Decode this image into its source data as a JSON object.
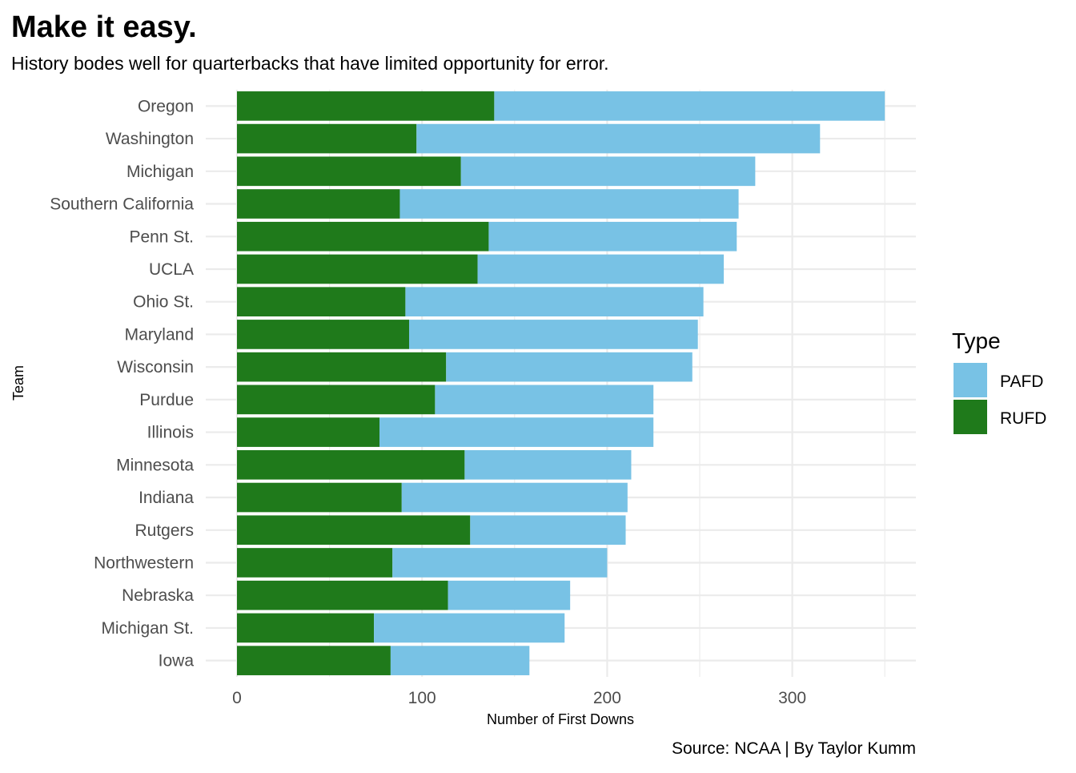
{
  "chart_data": {
    "type": "bar",
    "orientation": "horizontal",
    "stacked": true,
    "title": "Make it easy.",
    "subtitle": "History bodes well for quarterbacks that have limited opportunity for error.",
    "xlabel": "Number of First Downs",
    "ylabel": "Team",
    "caption": "Source: NCAA | By Taylor Kumm",
    "xlim": [
      0,
      367
    ],
    "xticks": [
      0,
      100,
      200,
      300
    ],
    "grid": true,
    "legend": {
      "title": "Type",
      "position": "right"
    },
    "categories": [
      "Oregon",
      "Washington",
      "Michigan",
      "Southern California",
      "Penn St.",
      "UCLA",
      "Ohio St.",
      "Maryland",
      "Wisconsin",
      "Purdue",
      "Illinois",
      "Minnesota",
      "Indiana",
      "Rutgers",
      "Northwestern",
      "Nebraska",
      "Michigan St.",
      "Iowa"
    ],
    "series": [
      {
        "name": "RUFD",
        "color": "#1f7a1b",
        "values": [
          139,
          97,
          121,
          88,
          136,
          130,
          91,
          93,
          113,
          107,
          77,
          123,
          89,
          126,
          84,
          114,
          74,
          83
        ]
      },
      {
        "name": "PAFD",
        "color": "#78c2e5",
        "values": [
          211,
          218,
          159,
          183,
          134,
          133,
          161,
          156,
          133,
          118,
          148,
          90,
          122,
          84,
          116,
          66,
          103,
          75
        ]
      }
    ],
    "legend_order": [
      "PAFD",
      "RUFD"
    ]
  }
}
